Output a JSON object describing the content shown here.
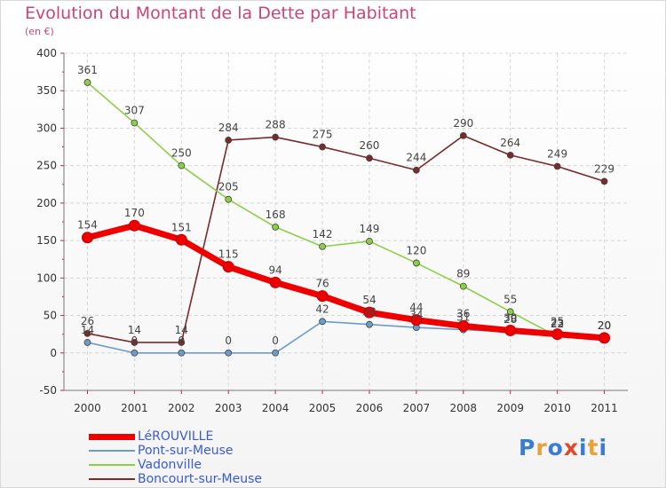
{
  "title": "Evolution du Montant de la Dette par Habitant",
  "subtitle": "(en €)",
  "logo": {
    "letters": [
      "P",
      "r",
      "o",
      "x",
      "i",
      "t",
      "i"
    ],
    "colors": [
      "#3a7bd5",
      "#e8a13a",
      "#3a7bd5",
      "#e04a2a",
      "#3a7bd5",
      "#e8a13a",
      "#3a7bd5"
    ]
  },
  "chart_data": {
    "type": "line",
    "title": "Evolution du Montant de la Dette par Habitant",
    "subtitle": "(en €)",
    "categories": [
      "2000",
      "2001",
      "2002",
      "2003",
      "2004",
      "2005",
      "2006",
      "2007",
      "2008",
      "2009",
      "2010",
      "2011"
    ],
    "ylim": [
      -50,
      400
    ],
    "yticks": [
      -50,
      0,
      50,
      100,
      150,
      200,
      250,
      300,
      350,
      400
    ],
    "grid": true,
    "legend_position": "bottom-left",
    "series": [
      {
        "name": "LéROUVILLE",
        "color": "#ee0000",
        "values": [
          154,
          170,
          151,
          115,
          94,
          76,
          54,
          44,
          36,
          30,
          25,
          20
        ],
        "labels": [
          "154",
          "170",
          "151",
          "115",
          "94",
          "76",
          "54",
          "44",
          "36",
          "30",
          "25",
          "20"
        ]
      },
      {
        "name": "Pont-sur-Meuse",
        "color": "#6a9ccc",
        "values": [
          14,
          0,
          0,
          0,
          0,
          42,
          38,
          34,
          31,
          28,
          23,
          20
        ],
        "labels": [
          "14",
          "0",
          "0",
          "0",
          "0",
          "42",
          "38",
          "34",
          "31",
          "28",
          "23",
          "20"
        ]
      },
      {
        "name": "Vadonville",
        "color": "#8ccf46",
        "values": [
          361,
          307,
          250,
          205,
          168,
          142,
          149,
          120,
          89,
          55,
          22,
          20
        ],
        "labels": [
          "361",
          "307",
          "250",
          "205",
          "168",
          "142",
          "149",
          "120",
          "89",
          "55",
          "22",
          "20"
        ]
      },
      {
        "name": "Boncourt-sur-Meuse",
        "color": "#7a2a2a",
        "values": [
          26,
          14,
          14,
          284,
          288,
          275,
          260,
          244,
          290,
          264,
          249,
          229
        ],
        "labels": [
          "26",
          "14",
          "14",
          "284",
          "288",
          "275",
          "260",
          "244",
          "290",
          "264",
          "249",
          "229"
        ]
      }
    ]
  }
}
